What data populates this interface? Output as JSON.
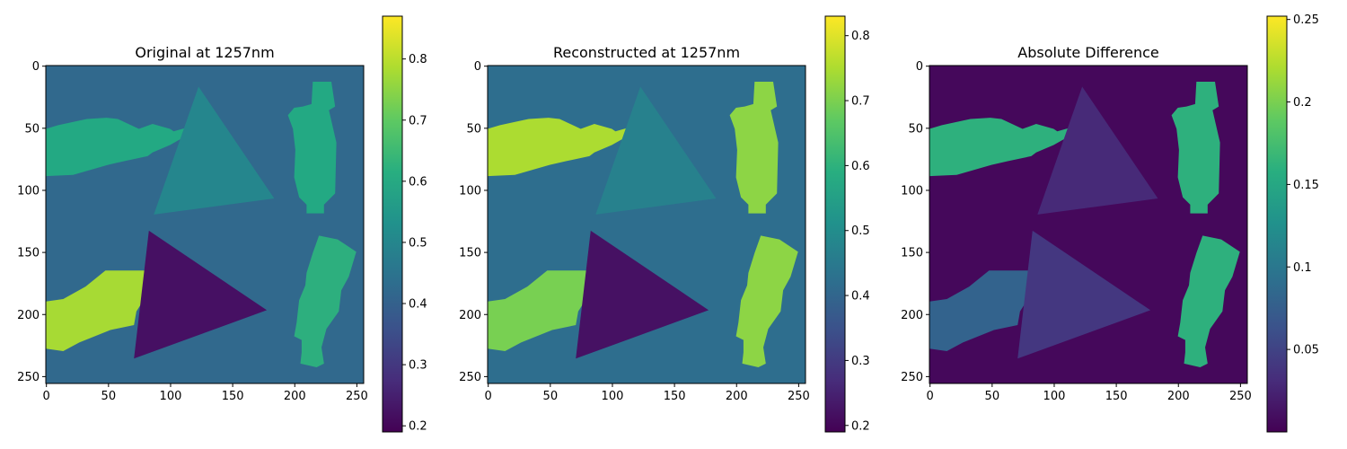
{
  "chart_data": [
    {
      "type": "heatmap",
      "title": "Original at 1257nm",
      "xlabel": "",
      "ylabel": "",
      "xlim": [
        0,
        255
      ],
      "ylim": [
        255,
        0
      ],
      "x_ticks": [
        0,
        50,
        100,
        150,
        200,
        250
      ],
      "y_ticks": [
        0,
        50,
        100,
        150,
        200,
        250
      ],
      "colormap": "viridis",
      "colorbar": {
        "min": 0.19,
        "max": 0.87,
        "ticks": [
          0.2,
          0.3,
          0.4,
          0.5,
          0.6,
          0.7,
          0.8
        ]
      },
      "background_value": 0.42,
      "regions": [
        {
          "shape": "bottle-horizontal",
          "value": 0.6
        },
        {
          "shape": "triangle-upper",
          "value": 0.5
        },
        {
          "shape": "bottle-vertical",
          "value": 0.6
        },
        {
          "shape": "bottle-lower-left",
          "value": 0.78
        },
        {
          "shape": "triangle-lower",
          "value": 0.22
        },
        {
          "shape": "bottle-tilted",
          "value": 0.62
        }
      ]
    },
    {
      "type": "heatmap",
      "title": "Reconstructed at 1257nm",
      "xlabel": "",
      "ylabel": "",
      "xlim": [
        0,
        255
      ],
      "ylim": [
        255,
        0
      ],
      "x_ticks": [
        0,
        50,
        100,
        150,
        200,
        250
      ],
      "y_ticks": [
        0,
        50,
        100,
        150,
        200,
        250
      ],
      "colormap": "viridis",
      "colorbar": {
        "min": 0.19,
        "max": 0.83,
        "ticks": [
          0.2,
          0.3,
          0.4,
          0.5,
          0.6,
          0.7,
          0.8
        ]
      },
      "background_value": 0.42,
      "regions": [
        {
          "shape": "bottle-horizontal",
          "value": 0.75
        },
        {
          "shape": "triangle-upper",
          "value": 0.47
        },
        {
          "shape": "bottle-vertical",
          "value": 0.72
        },
        {
          "shape": "bottle-lower-left",
          "value": 0.7
        },
        {
          "shape": "triangle-lower",
          "value": 0.22
        },
        {
          "shape": "bottle-tilted",
          "value": 0.72
        }
      ]
    },
    {
      "type": "heatmap",
      "title": "Absolute Difference",
      "xlabel": "",
      "ylabel": "",
      "xlim": [
        0,
        255
      ],
      "ylim": [
        255,
        0
      ],
      "x_ticks": [
        0,
        50,
        100,
        150,
        200,
        250
      ],
      "y_ticks": [
        0,
        50,
        100,
        150,
        200,
        250
      ],
      "colormap": "viridis",
      "colorbar": {
        "min": 0.0,
        "max": 0.252,
        "ticks": [
          0.05,
          0.1,
          0.15,
          0.2,
          0.25
        ]
      },
      "background_value": 0.005,
      "regions": [
        {
          "shape": "bottle-horizontal",
          "value": 0.16
        },
        {
          "shape": "triangle-upper",
          "value": 0.03
        },
        {
          "shape": "bottle-vertical",
          "value": 0.16
        },
        {
          "shape": "bottle-lower-left",
          "value": 0.08
        },
        {
          "shape": "triangle-lower",
          "value": 0.04
        },
        {
          "shape": "bottle-tilted",
          "value": 0.16
        }
      ]
    }
  ]
}
